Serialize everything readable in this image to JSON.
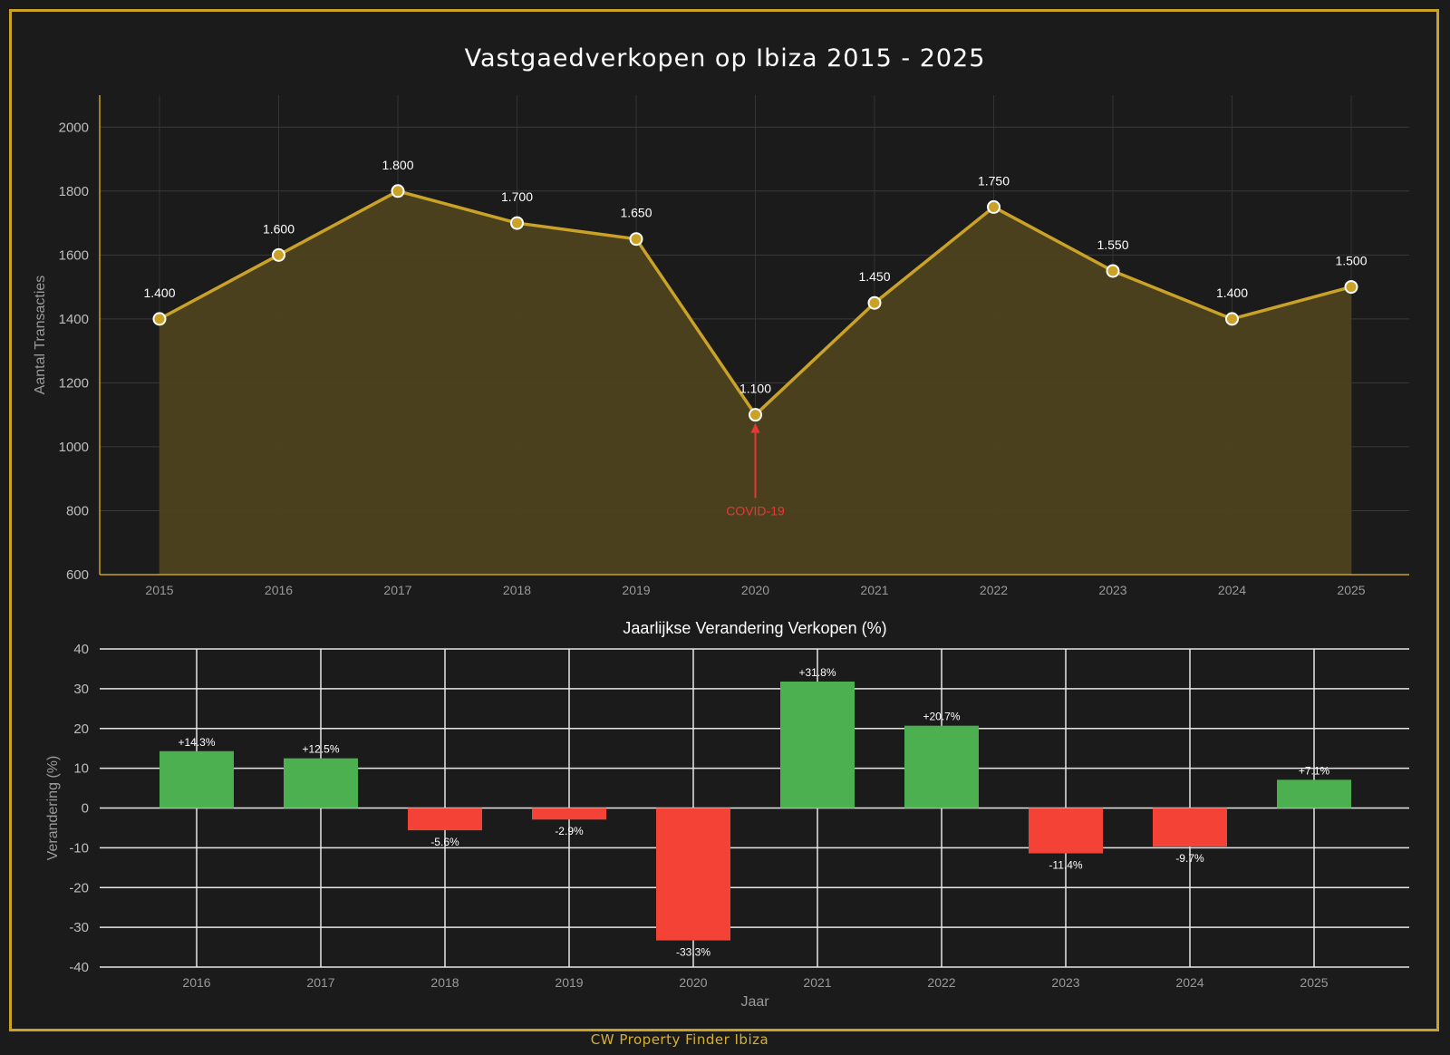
{
  "chart_data": [
    {
      "type": "area",
      "title": "Vastgaedverkopen op Ibiza 2015 - 2025",
      "xlabel": "",
      "ylabel": "Aantal Transacties",
      "x": [
        "2015",
        "2016",
        "2017",
        "2018",
        "2019",
        "2020",
        "2021",
        "2022",
        "2023",
        "2024",
        "2025"
      ],
      "values": [
        1400,
        1600,
        1800,
        1700,
        1650,
        1100,
        1450,
        1750,
        1550,
        1400,
        1500
      ],
      "point_labels": [
        "1.400",
        "1.600",
        "1.800",
        "1.700",
        "1.650",
        "1.100",
        "1.450",
        "1.750",
        "1.550",
        "1.400",
        "1.500"
      ],
      "ylim": [
        600,
        2100
      ],
      "yticks": [
        600,
        800,
        1000,
        1200,
        1400,
        1600,
        1800,
        2000
      ],
      "grid": true,
      "line_color": "#c9a227",
      "fill_color": "#4d421f",
      "annotation": {
        "text": "COVID-19",
        "x": "2020",
        "text_y": 800,
        "color": "#e53935"
      }
    },
    {
      "type": "bar",
      "title": "Jaarlijkse Verandering Verkopen (%)",
      "xlabel": "Jaar",
      "ylabel": "Verandering (%)",
      "categories": [
        "2016",
        "2017",
        "2018",
        "2019",
        "2020",
        "2021",
        "2022",
        "2023",
        "2024",
        "2025"
      ],
      "values": [
        14.3,
        12.5,
        -5.6,
        -2.9,
        -33.3,
        31.8,
        20.7,
        -11.4,
        -9.7,
        7.1
      ],
      "value_labels": [
        "+14.3%",
        "+12.5%",
        "-5.6%",
        "-2.9%",
        "-33.3%",
        "+31.8%",
        "+20.7%",
        "-11.4%",
        "-9.7%",
        "+7.1%"
      ],
      "ylim": [
        -40,
        40
      ],
      "yticks": [
        -40,
        -30,
        -20,
        -10,
        0,
        10,
        20,
        30,
        40
      ],
      "grid": true,
      "positive_color": "#4caf50",
      "negative_color": "#f44336"
    }
  ],
  "footer": {
    "text": "CW Property Finder Ibiza"
  }
}
